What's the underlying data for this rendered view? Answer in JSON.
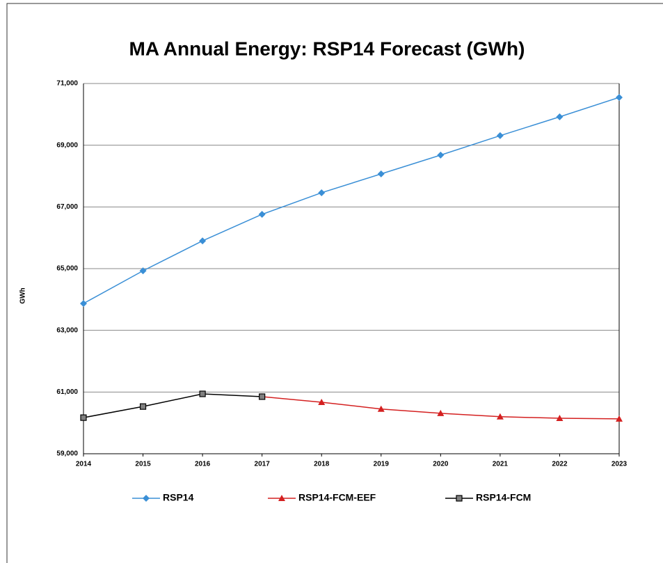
{
  "chart_data": {
    "type": "line",
    "title": "MA Annual Energy: RSP14 Forecast (GWh)",
    "y_label": "GWh",
    "categories": [
      "2014",
      "2015",
      "2016",
      "2017",
      "2018",
      "2019",
      "2020",
      "2021",
      "2022",
      "2023"
    ],
    "series": [
      {
        "name": "RSP14",
        "color": "#3a8fd6",
        "marker": "diamond",
        "values": [
          63870,
          64930,
          65900,
          66760,
          67460,
          68070,
          68680,
          69310,
          69920,
          70550
        ]
      },
      {
        "name": "RSP14-FCM-EEF",
        "color": "#d42020",
        "marker": "triangle",
        "values": [
          null,
          null,
          null,
          60850,
          60670,
          60450,
          60310,
          60200,
          60150,
          60130
        ]
      },
      {
        "name": "RSP14-FCM",
        "color": "#000000",
        "marker": "square",
        "values": [
          60170,
          60530,
          60940,
          60850,
          null,
          null,
          null,
          null,
          null,
          null
        ]
      }
    ],
    "ylim": [
      59000,
      71000
    ],
    "yticks": [
      {
        "value": 59000,
        "label": "59,000"
      },
      {
        "value": 61000,
        "label": "61,000"
      },
      {
        "value": 63000,
        "label": "63,000"
      },
      {
        "value": 65000,
        "label": "65,000"
      },
      {
        "value": 67000,
        "label": "67,000"
      },
      {
        "value": 69000,
        "label": "69,000"
      },
      {
        "value": 71000,
        "label": "71,000"
      }
    ],
    "grid": true,
    "legend": "bottom"
  }
}
